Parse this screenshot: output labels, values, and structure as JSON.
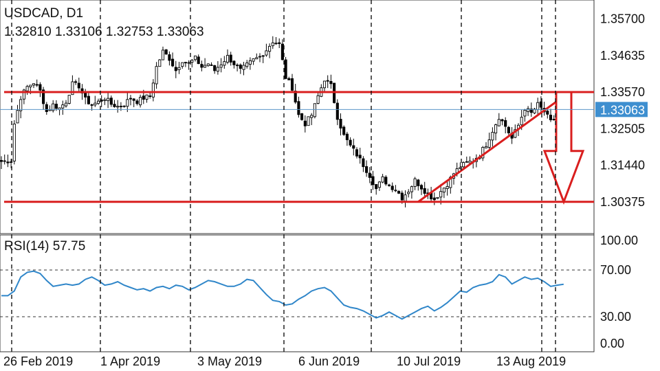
{
  "header": {
    "symbol": "USDCAD, D1",
    "ohlc": "1.32810 1.33106 1.32753 1.33063"
  },
  "price_axis": {
    "labels": [
      "1.35700",
      "1.34635",
      "1.33570",
      "1.32505",
      "1.31440",
      "1.30375"
    ],
    "current_price": "1.33063"
  },
  "rsi_panel": {
    "title": "RSI(14) 57.75",
    "labels": [
      "100.00",
      "70.00",
      "30.00",
      "0.00"
    ]
  },
  "x_axis": {
    "labels": [
      "26 Feb 2019",
      "1 Apr 2019",
      "3 May 2019",
      "6 Jun 2019",
      "10 Jul 2019",
      "13 Aug 2019"
    ]
  },
  "colors": {
    "background": "#ffffff",
    "candle": "#000000",
    "annotation_red": "#d91e1e",
    "current_price_line": "#5a96c8",
    "current_price_label_bg": "#3e8fd0",
    "rsi_line": "#2f86c9",
    "frame": "#333333"
  },
  "chart_data": [
    {
      "type": "candlestick",
      "symbol": "USDCAD",
      "timeframe": "D1",
      "ylim": [
        1.2945,
        1.3625
      ],
      "y_ticks": [
        1.357,
        1.34635,
        1.3357,
        1.32505,
        1.3144,
        1.30375
      ],
      "x_ticks": [
        "26 Feb 2019",
        "1 Apr 2019",
        "3 May 2019",
        "6 Jun 2019",
        "10 Jul 2019",
        "13 Aug 2019"
      ],
      "last_bar": {
        "open": 1.3281,
        "high": 1.33106,
        "low": 1.32753,
        "close": 1.33063
      },
      "close_path": [
        [
          0,
          1.3155
        ],
        [
          3,
          1.3158
        ],
        [
          4,
          1.3265
        ],
        [
          6,
          1.3342
        ],
        [
          8,
          1.3372
        ],
        [
          10,
          1.3385
        ],
        [
          12,
          1.336
        ],
        [
          14,
          1.33
        ],
        [
          16,
          1.332
        ],
        [
          18,
          1.331
        ],
        [
          20,
          1.333
        ],
        [
          22,
          1.338
        ],
        [
          24,
          1.3375
        ],
        [
          26,
          1.3335
        ],
        [
          28,
          1.332
        ],
        [
          30,
          1.3328
        ],
        [
          32,
          1.334
        ],
        [
          34,
          1.3322
        ],
        [
          36,
          1.3315
        ],
        [
          38,
          1.3322
        ],
        [
          40,
          1.334
        ],
        [
          42,
          1.333
        ],
        [
          44,
          1.334
        ],
        [
          46,
          1.3345
        ],
        [
          48,
          1.343
        ],
        [
          50,
          1.3475
        ],
        [
          52,
          1.3455
        ],
        [
          54,
          1.342
        ],
        [
          56,
          1.345
        ],
        [
          58,
          1.344
        ],
        [
          60,
          1.3455
        ],
        [
          62,
          1.343
        ],
        [
          64,
          1.344
        ],
        [
          66,
          1.342
        ],
        [
          68,
          1.344
        ],
        [
          70,
          1.346
        ],
        [
          72,
          1.344
        ],
        [
          74,
          1.342
        ],
        [
          76,
          1.3435
        ],
        [
          78,
          1.345
        ],
        [
          80,
          1.346
        ],
        [
          82,
          1.348
        ],
        [
          84,
          1.3505
        ],
        [
          86,
          1.3495
        ],
        [
          88,
          1.34
        ],
        [
          90,
          1.337
        ],
        [
          92,
          1.329
        ],
        [
          94,
          1.3265
        ],
        [
          96,
          1.329
        ],
        [
          98,
          1.3345
        ],
        [
          100,
          1.3395
        ],
        [
          102,
          1.3375
        ],
        [
          104,
          1.3285
        ],
        [
          106,
          1.323
        ],
        [
          108,
          1.32
        ],
        [
          110,
          1.3175
        ],
        [
          112,
          1.3145
        ],
        [
          114,
          1.3115
        ],
        [
          116,
          1.3075
        ],
        [
          118,
          1.3105
        ],
        [
          120,
          1.3085
        ],
        [
          122,
          1.3075
        ],
        [
          124,
          1.305
        ],
        [
          126,
          1.307
        ],
        [
          128,
          1.31
        ],
        [
          130,
          1.308
        ],
        [
          132,
          1.306
        ],
        [
          134,
          1.3045
        ],
        [
          136,
          1.3068
        ],
        [
          138,
          1.309
        ],
        [
          140,
          1.312
        ],
        [
          142,
          1.314
        ],
        [
          144,
          1.315
        ],
        [
          146,
          1.3158
        ],
        [
          148,
          1.3175
        ],
        [
          150,
          1.3205
        ],
        [
          152,
          1.3245
        ],
        [
          154,
          1.3285
        ],
        [
          156,
          1.3258
        ],
        [
          158,
          1.3222
        ],
        [
          160,
          1.326
        ],
        [
          162,
          1.331
        ],
        [
          164,
          1.3295
        ],
        [
          166,
          1.332
        ],
        [
          168,
          1.33
        ],
        [
          170,
          1.327
        ],
        [
          172,
          1.3285
        ],
        [
          174,
          1.3306
        ]
      ],
      "overlays": {
        "horizontal_lines": [
          1.3357,
          1.30375
        ],
        "current_price_line": 1.33063,
        "trend_line": {
          "from": [
            129,
            1.30375
          ],
          "to": [
            175,
            1.3357
          ]
        },
        "projection_arrow": {
          "from": 1.3357,
          "to": 1.30375
        }
      }
    },
    {
      "type": "line",
      "title": "RSI(14) 57.75",
      "ylim": [
        0,
        100
      ],
      "y_ticks": [
        100,
        70,
        30,
        0
      ],
      "last_value": 57.75,
      "series": [
        {
          "values": [
            [
              0,
              48
            ],
            [
              2,
              48
            ],
            [
              4,
              52
            ],
            [
              6,
              64
            ],
            [
              8,
              68
            ],
            [
              10,
              69
            ],
            [
              12,
              67
            ],
            [
              14,
              61
            ],
            [
              16,
              56
            ],
            [
              18,
              57
            ],
            [
              20,
              58
            ],
            [
              22,
              57
            ],
            [
              24,
              58
            ],
            [
              26,
              62
            ],
            [
              28,
              64
            ],
            [
              30,
              61
            ],
            [
              32,
              57
            ],
            [
              34,
              58
            ],
            [
              36,
              60
            ],
            [
              38,
              57
            ],
            [
              40,
              55
            ],
            [
              42,
              53
            ],
            [
              44,
              54
            ],
            [
              46,
              52
            ],
            [
              48,
              55
            ],
            [
              50,
              56
            ],
            [
              52,
              54
            ],
            [
              54,
              57
            ],
            [
              56,
              56
            ],
            [
              58,
              53
            ],
            [
              60,
              55
            ],
            [
              62,
              58
            ],
            [
              64,
              61
            ],
            [
              66,
              60
            ],
            [
              68,
              58
            ],
            [
              70,
              56
            ],
            [
              72,
              56
            ],
            [
              74,
              58
            ],
            [
              76,
              62
            ],
            [
              78,
              61
            ],
            [
              80,
              55
            ],
            [
              82,
              49
            ],
            [
              84,
              44
            ],
            [
              86,
              43
            ],
            [
              88,
              40
            ],
            [
              90,
              41
            ],
            [
              92,
              45
            ],
            [
              94,
              48
            ],
            [
              96,
              52
            ],
            [
              98,
              54
            ],
            [
              100,
              55
            ],
            [
              102,
              52
            ],
            [
              104,
              46
            ],
            [
              106,
              40
            ],
            [
              108,
              38
            ],
            [
              110,
              37
            ],
            [
              112,
              35
            ],
            [
              114,
              32
            ],
            [
              116,
              29
            ],
            [
              118,
              31
            ],
            [
              120,
              34
            ],
            [
              122,
              31
            ],
            [
              124,
              28
            ],
            [
              126,
              31
            ],
            [
              128,
              34
            ],
            [
              130,
              37
            ],
            [
              132,
              39
            ],
            [
              134,
              35
            ],
            [
              136,
              38
            ],
            [
              138,
              42
            ],
            [
              140,
              47
            ],
            [
              142,
              52
            ],
            [
              144,
              51
            ],
            [
              146,
              55
            ],
            [
              148,
              57
            ],
            [
              150,
              58
            ],
            [
              152,
              60
            ],
            [
              154,
              66
            ],
            [
              156,
              64
            ],
            [
              158,
              58
            ],
            [
              160,
              61
            ],
            [
              162,
              64
            ],
            [
              164,
              62
            ],
            [
              166,
              63
            ],
            [
              168,
              60
            ],
            [
              170,
              56
            ],
            [
              172,
              57
            ],
            [
              174,
              57.75
            ]
          ]
        }
      ]
    }
  ]
}
